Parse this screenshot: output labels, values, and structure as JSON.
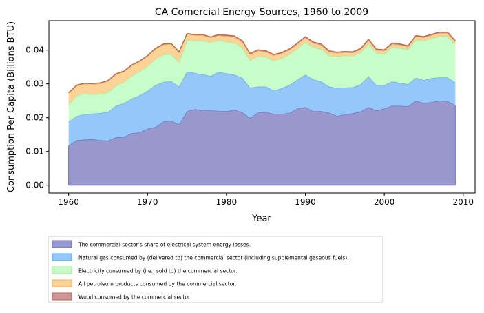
{
  "chart_data": {
    "type": "area",
    "stacked": true,
    "title": "CA Comercial Energy Sources, 1960 to 2009",
    "xlabel": "Year",
    "ylabel": "Consumption Per Capita (Billions BTU)",
    "xlim": [
      1957.5,
      2011.5
    ],
    "ylim": [
      -0.0023,
      0.0487
    ],
    "xticks": [
      1960,
      1970,
      1980,
      1990,
      2000,
      2010
    ],
    "yticks": [
      0.0,
      0.01,
      0.02,
      0.03,
      0.04
    ],
    "ytick_labels": [
      "0.00",
      "0.01",
      "0.02",
      "0.03",
      "0.04"
    ],
    "legend_position": "bottom-left, outside plot",
    "grid": false,
    "x": [
      1960,
      1961,
      1962,
      1963,
      1964,
      1965,
      1966,
      1967,
      1968,
      1969,
      1970,
      1971,
      1972,
      1973,
      1974,
      1975,
      1976,
      1977,
      1978,
      1979,
      1980,
      1981,
      1982,
      1983,
      1984,
      1985,
      1986,
      1987,
      1988,
      1989,
      1990,
      1991,
      1992,
      1993,
      1994,
      1995,
      1996,
      1997,
      1998,
      1999,
      2000,
      2001,
      2002,
      2003,
      2004,
      2005,
      2006,
      2007,
      2008,
      2009
    ],
    "series": [
      {
        "name": "The commercial sector's share of electrical system energy losses.",
        "fill": "#9898cc",
        "line": "#6c6cc0",
        "values": [
          0.0117,
          0.0133,
          0.0135,
          0.0136,
          0.0133,
          0.0132,
          0.0142,
          0.0143,
          0.0154,
          0.0156,
          0.0167,
          0.0172,
          0.0188,
          0.0191,
          0.018,
          0.0219,
          0.0225,
          0.0221,
          0.0221,
          0.022,
          0.0219,
          0.0223,
          0.0216,
          0.0199,
          0.0215,
          0.0217,
          0.0211,
          0.0211,
          0.0214,
          0.0227,
          0.0231,
          0.0219,
          0.0219,
          0.0215,
          0.0205,
          0.0209,
          0.0213,
          0.0218,
          0.0231,
          0.0221,
          0.0227,
          0.0235,
          0.0235,
          0.0233,
          0.025,
          0.0243,
          0.0246,
          0.025,
          0.0249,
          0.0236
        ]
      },
      {
        "name": "Natural gas consumed by (delivered to) the commercial sector (including supplemental gaseous fuels).",
        "fill": "#95c8fa",
        "line": "#5aa5ee",
        "values": [
          0.0071,
          0.0071,
          0.0075,
          0.0076,
          0.008,
          0.0085,
          0.0093,
          0.01,
          0.0102,
          0.011,
          0.0112,
          0.0124,
          0.0117,
          0.0117,
          0.0112,
          0.0117,
          0.0107,
          0.0107,
          0.0102,
          0.0115,
          0.0112,
          0.0104,
          0.0102,
          0.0089,
          0.0077,
          0.0075,
          0.0069,
          0.0076,
          0.0083,
          0.0085,
          0.0096,
          0.0094,
          0.0088,
          0.0077,
          0.0083,
          0.008,
          0.0077,
          0.008,
          0.0091,
          0.0075,
          0.0069,
          0.0072,
          0.0068,
          0.0066,
          0.0068,
          0.0068,
          0.0071,
          0.0069,
          0.007,
          0.0068
        ]
      },
      {
        "name": "Electricity consumed by (i.e., sold to) the commercial sector.",
        "fill": "#c8fcc8",
        "line": "#9de89d",
        "values": [
          0.005,
          0.0061,
          0.0062,
          0.0057,
          0.0057,
          0.0058,
          0.006,
          0.0063,
          0.0068,
          0.0071,
          0.0074,
          0.0078,
          0.0082,
          0.008,
          0.0072,
          0.0094,
          0.0095,
          0.01,
          0.01,
          0.0095,
          0.0094,
          0.0095,
          0.009,
          0.0082,
          0.009,
          0.0088,
          0.0089,
          0.0089,
          0.0091,
          0.0093,
          0.0097,
          0.0096,
          0.0096,
          0.0092,
          0.0094,
          0.0095,
          0.0093,
          0.0095,
          0.0097,
          0.0095,
          0.0092,
          0.0102,
          0.0103,
          0.0103,
          0.0113,
          0.0117,
          0.0118,
          0.0122,
          0.0122,
          0.0113
        ]
      },
      {
        "name": "All petroleum products consumed by the commercial sector.",
        "fill": "#ffd396",
        "line": "#f5b14f",
        "values": [
          0.0034,
          0.0029,
          0.0028,
          0.003,
          0.0031,
          0.0033,
          0.0033,
          0.003,
          0.003,
          0.0029,
          0.0029,
          0.0029,
          0.0029,
          0.003,
          0.0029,
          0.0017,
          0.0017,
          0.0016,
          0.0014,
          0.0013,
          0.0016,
          0.0017,
          0.0017,
          0.0017,
          0.0016,
          0.0015,
          0.0015,
          0.0014,
          0.0013,
          0.0013,
          0.0013,
          0.0012,
          0.0012,
          0.0011,
          0.0009,
          0.0009,
          0.0009,
          0.0009,
          0.001,
          0.0009,
          0.001,
          0.0009,
          0.0009,
          0.0008,
          0.0009,
          0.0009,
          0.0009,
          0.0009,
          0.0009,
          0.0008
        ]
      },
      {
        "name": "Wood consumed by the commercial sector",
        "fill": "#cf9898",
        "line": "#b5664e",
        "values": [
          0.0002,
          0.0002,
          0.0002,
          0.0002,
          0.0002,
          0.0002,
          0.0002,
          0.0002,
          0.0002,
          0.0002,
          0.0002,
          0.0002,
          0.0002,
          0.0002,
          0.0002,
          0.0002,
          0.0002,
          0.0002,
          0.0002,
          0.0003,
          0.0003,
          0.0003,
          0.0003,
          0.0003,
          0.0003,
          0.0003,
          0.0003,
          0.0003,
          0.0003,
          0.0003,
          0.0003,
          0.0003,
          0.0003,
          0.0003,
          0.0003,
          0.0003,
          0.0003,
          0.0003,
          0.0003,
          0.0003,
          0.0003,
          0.0003,
          0.0003,
          0.0003,
          0.0003,
          0.0003,
          0.0003,
          0.0003,
          0.0003,
          0.0003
        ]
      }
    ]
  }
}
